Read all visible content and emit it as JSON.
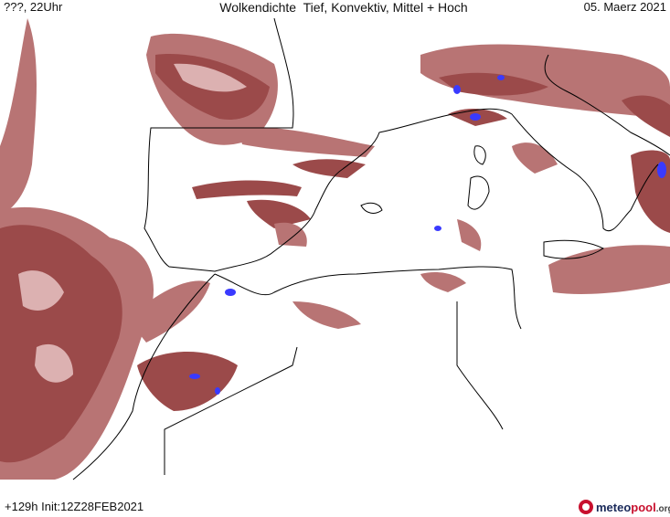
{
  "header": {
    "left": "???, 22Uhr",
    "title": "Wolkendichte  Tief, Konvektiv, Mittel + Hoch",
    "date": "05. Maerz 2021"
  },
  "footer": {
    "run": "+129h Init:12Z28FEB2021",
    "logo": {
      "brand_dark": "meteo",
      "brand_color": "pool",
      "suffix": ".org"
    }
  }
}
